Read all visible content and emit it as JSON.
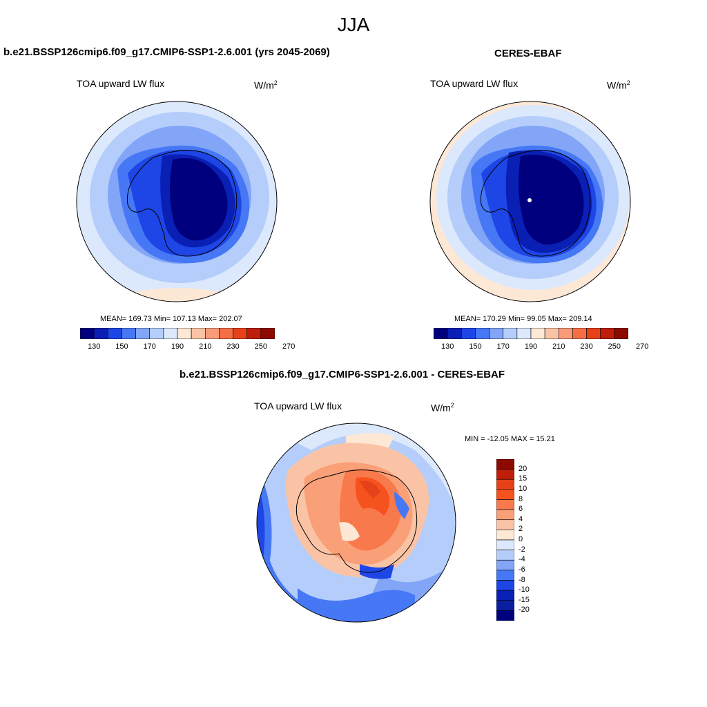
{
  "figure": {
    "title": "JJA"
  },
  "panels": {
    "model": {
      "title": "b.e21.BSSP126cmip6.f09_g17.CMIP6-SSP1-2.6.001 (yrs 2045-2069)",
      "variable": "TOA upward LW flux",
      "units_base": "W/m",
      "units_exp": "2",
      "stats": "MEAN= 169.73  Min= 107.13  Max= 202.07",
      "mean": 169.73,
      "min": 107.13,
      "max": 202.07
    },
    "obs": {
      "title": "CERES-EBAF",
      "variable": "TOA upward LW flux",
      "units_base": "W/m",
      "units_exp": "2",
      "stats": "MEAN= 170.29  Min=  99.05  Max= 209.14",
      "mean": 170.29,
      "min": 99.05,
      "max": 209.14
    },
    "diff": {
      "title": "b.e21.BSSP126cmip6.f09_g17.CMIP6-SSP1-2.6.001 - CERES-EBAF",
      "variable": "TOA upward LW flux",
      "units_base": "W/m",
      "units_exp": "2",
      "stats": "MIN = -12.05 MAX =  15.21",
      "min": -12.05,
      "max": 15.21
    }
  },
  "colorbar_abs": {
    "labels": [
      "130",
      "150",
      "170",
      "190",
      "210",
      "230",
      "250",
      "270"
    ],
    "colors": [
      "#00007f",
      "#0a1fb4",
      "#1e46e6",
      "#4678f5",
      "#82a5f8",
      "#b4cdfa",
      "#dce8fc",
      "#fde8d6",
      "#fbc3a5",
      "#f89b78",
      "#f56e46",
      "#e64119",
      "#be1e0a",
      "#8c0a00"
    ]
  },
  "colorbar_diff": {
    "labels": [
      "20",
      "15",
      "10",
      "8",
      "6",
      "4",
      "2",
      "0",
      "-2",
      "-4",
      "-6",
      "-8",
      "-10",
      "-15",
      "-20"
    ],
    "colors": [
      "#8c0a00",
      "#be1e0a",
      "#e64119",
      "#f6521e",
      "#f8794b",
      "#f9a078",
      "#fbc3a5",
      "#fde8d6",
      "#dce8fc",
      "#b4cdfa",
      "#82a5f8",
      "#4678f5",
      "#1e46e6",
      "#0a1fb4",
      "#0a1fa0",
      "#00007f"
    ]
  }
}
